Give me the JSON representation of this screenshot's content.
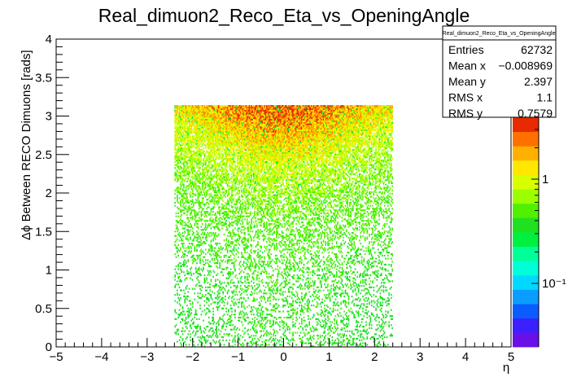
{
  "chart_data": {
    "type": "heatmap",
    "title": "Real_dimuon2_Reco_Eta_vs_OpeningAngle",
    "xlabel": "η",
    "ylabel": "Δϕ Between RECO Dimuons [rads]",
    "xlim": [
      -5,
      5
    ],
    "ylim": [
      0,
      4
    ],
    "x_ticks": [
      "−5",
      "−4",
      "−3",
      "−2",
      "−1",
      "0",
      "1",
      "2",
      "3",
      "4",
      "5"
    ],
    "y_ticks": [
      "0",
      "0.5",
      "1",
      "1.5",
      "2",
      "2.5",
      "3",
      "3.5",
      "4"
    ],
    "z_scale": "log",
    "z_tick_labels": [
      "10⁻¹",
      "1"
    ],
    "data_region": {
      "x": [
        -2.4,
        2.4
      ],
      "y": [
        0,
        3.1416
      ]
    },
    "density_note_values": {
      "peak_y": 3.1,
      "peak_x": [
        -1.2,
        1.2
      ]
    },
    "stats": {
      "name": "Real_dimuon2_Reco_Eta_vs_OpeningAngle",
      "rows": [
        {
          "label": "Entries",
          "value": "62732"
        },
        {
          "label": "Mean x",
          "value": "−0.008969"
        },
        {
          "label": "Mean y",
          "value": "2.397"
        },
        {
          "label": "RMS x",
          "value": "1.1"
        },
        {
          "label": "RMS y",
          "value": "0.7579"
        }
      ]
    },
    "palette": [
      "#6a0fe8",
      "#3c20ff",
      "#0b5cff",
      "#0a9dff",
      "#00d8ff",
      "#00ffd8",
      "#00ff99",
      "#00f040",
      "#20e020",
      "#50f000",
      "#9cff00",
      "#d8ff00",
      "#ffe800",
      "#ffb000",
      "#ff7000",
      "#e82a00"
    ],
    "grid": false
  }
}
